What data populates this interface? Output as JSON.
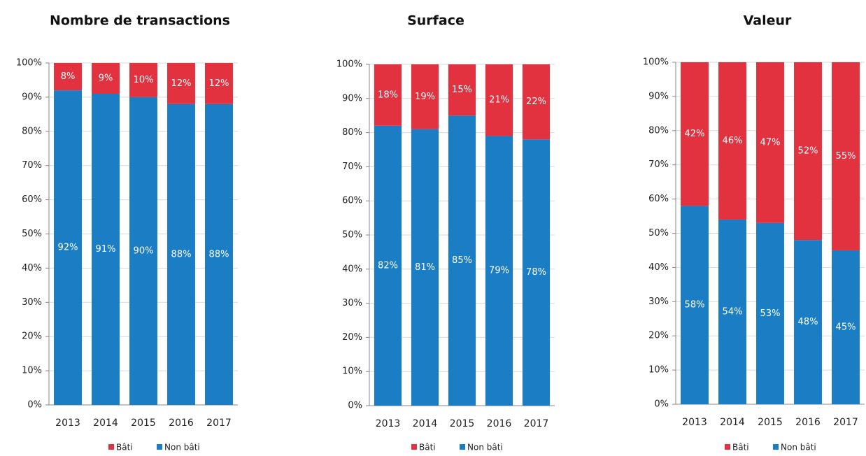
{
  "chart_data": [
    {
      "type": "bar",
      "stacked": true,
      "title": "Nombre de transactions",
      "categories": [
        "2013",
        "2014",
        "2015",
        "2016",
        "2017"
      ],
      "series": [
        {
          "name": "Bâti",
          "color": "#e2323f",
          "values": [
            8,
            9,
            10,
            12,
            12
          ],
          "value_labels": [
            "8%",
            "9%",
            "10%",
            "12%",
            "12%"
          ]
        },
        {
          "name": "Non bâti",
          "color": "#1b7ec4",
          "values": [
            92,
            91,
            90,
            88,
            88
          ],
          "value_labels": [
            "92%",
            "91%",
            "90%",
            "88%",
            "88%"
          ]
        }
      ],
      "ylim": [
        0,
        100
      ],
      "yticks": [
        {
          "value": 0,
          "label": "0%"
        },
        {
          "value": 10,
          "label": "10%"
        },
        {
          "value": 20,
          "label": "20%"
        },
        {
          "value": 30,
          "label": "30%"
        },
        {
          "value": 40,
          "label": "40%"
        },
        {
          "value": 50,
          "label": "50%"
        },
        {
          "value": 60,
          "label": "60%"
        },
        {
          "value": 70,
          "label": "70%"
        },
        {
          "value": 80,
          "label": "80%"
        },
        {
          "value": 90,
          "label": "90%"
        },
        {
          "value": 100,
          "label": "100%"
        }
      ],
      "grid": true,
      "legend": "bottom"
    },
    {
      "type": "bar",
      "stacked": true,
      "title": "Surface",
      "categories": [
        "2013",
        "2014",
        "2015",
        "2016",
        "2017"
      ],
      "series": [
        {
          "name": "Bâti",
          "color": "#e2323f",
          "values": [
            18,
            19,
            15,
            21,
            22
          ],
          "value_labels": [
            "18%",
            "19%",
            "15%",
            "21%",
            "22%"
          ]
        },
        {
          "name": "Non bâti",
          "color": "#1b7ec4",
          "values": [
            82,
            81,
            85,
            79,
            78
          ],
          "value_labels": [
            "82%",
            "81%",
            "85%",
            "79%",
            "78%"
          ]
        }
      ],
      "ylim": [
        0,
        100
      ],
      "yticks": [
        {
          "value": 0,
          "label": "0%"
        },
        {
          "value": 10,
          "label": "10%"
        },
        {
          "value": 20,
          "label": "20%"
        },
        {
          "value": 30,
          "label": "30%"
        },
        {
          "value": 40,
          "label": "40%"
        },
        {
          "value": 50,
          "label": "50%"
        },
        {
          "value": 60,
          "label": "60%"
        },
        {
          "value": 70,
          "label": "70%"
        },
        {
          "value": 80,
          "label": "80%"
        },
        {
          "value": 90,
          "label": "90%"
        },
        {
          "value": 100,
          "label": "100%"
        }
      ],
      "grid": true,
      "legend": "bottom"
    },
    {
      "type": "bar",
      "stacked": true,
      "title": "Valeur",
      "categories": [
        "2013",
        "2014",
        "2015",
        "2016",
        "2017"
      ],
      "series": [
        {
          "name": "Bâti",
          "color": "#e2323f",
          "values": [
            42,
            46,
            47,
            52,
            55
          ],
          "value_labels": [
            "42%",
            "46%",
            "47%",
            "52%",
            "55%"
          ]
        },
        {
          "name": "Non bâti",
          "color": "#1b7ec4",
          "values": [
            58,
            54,
            53,
            48,
            45
          ],
          "value_labels": [
            "58%",
            "54%",
            "53%",
            "48%",
            "45%"
          ]
        }
      ],
      "ylim": [
        0,
        100
      ],
      "yticks": [
        {
          "value": 0,
          "label": "0%"
        },
        {
          "value": 10,
          "label": "10%"
        },
        {
          "value": 20,
          "label": "20%"
        },
        {
          "value": 30,
          "label": "30%"
        },
        {
          "value": 40,
          "label": "40%"
        },
        {
          "value": 50,
          "label": "50%"
        },
        {
          "value": 60,
          "label": "60%"
        },
        {
          "value": 70,
          "label": "70%"
        },
        {
          "value": 80,
          "label": "80%"
        },
        {
          "value": 90,
          "label": "90%"
        },
        {
          "value": 100,
          "label": "100%"
        }
      ],
      "grid": true,
      "legend": "bottom"
    }
  ]
}
